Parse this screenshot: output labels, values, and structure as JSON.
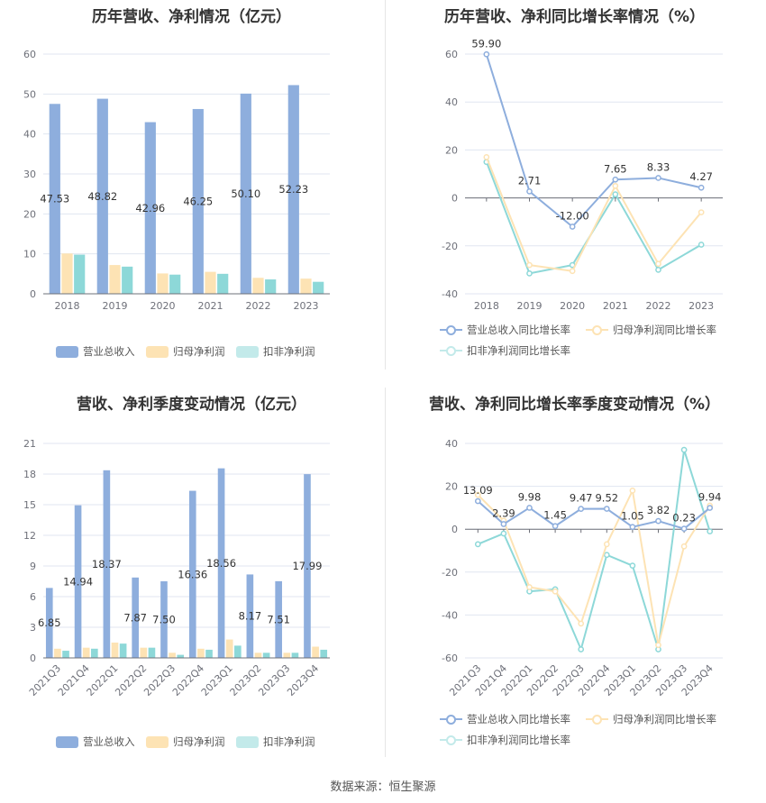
{
  "source_label": "数据来源：恒生聚源",
  "colors": {
    "revenue": "#8eaedd",
    "net_profit": "#fde3b4",
    "deducted_profit": "#8dd8d8",
    "revenue_line": "#8eaedd",
    "net_line": "#fde3b4",
    "deducted_line": "#8dd8d8"
  },
  "chart_data": [
    {
      "type": "bar",
      "title": "历年营收、净利情况（亿元）",
      "categories": [
        "2018",
        "2019",
        "2020",
        "2021",
        "2022",
        "2023"
      ],
      "yticks": [
        "0",
        "10",
        "20",
        "30",
        "40",
        "50",
        "60"
      ],
      "ylim": [
        0,
        60
      ],
      "grid": true,
      "legend_position": "bottom",
      "series": [
        {
          "name": "营业总收入",
          "values": [
            47.53,
            48.82,
            42.96,
            46.25,
            50.1,
            52.23
          ],
          "labels": [
            "47.53",
            "48.82",
            "42.96",
            "46.25",
            "50.10",
            "52.23"
          ]
        },
        {
          "name": "归母净利润",
          "values": [
            10.1,
            7.2,
            5.1,
            5.5,
            4.0,
            3.8
          ]
        },
        {
          "name": "扣非净利润",
          "values": [
            9.8,
            6.8,
            4.8,
            5.0,
            3.6,
            3.0
          ]
        }
      ]
    },
    {
      "type": "line",
      "title": "历年营收、净利同比增长率情况（%）",
      "categories": [
        "2018",
        "2019",
        "2020",
        "2021",
        "2022",
        "2023"
      ],
      "yticks": [
        "-40",
        "-20",
        "0",
        "20",
        "40",
        "60"
      ],
      "ylim": [
        -40,
        60
      ],
      "grid": true,
      "legend_position": "bottom",
      "series": [
        {
          "name": "营业总收入同比增长率",
          "values": [
            59.9,
            2.71,
            -12.0,
            7.65,
            8.33,
            4.27
          ],
          "labels": [
            "59.90",
            "2.71",
            "-12.00",
            "7.65",
            "8.33",
            "4.27"
          ]
        },
        {
          "name": "归母净利润同比增长率",
          "values": [
            17.0,
            -28.0,
            -30.5,
            5.0,
            -27.5,
            -6.0
          ]
        },
        {
          "name": "扣非净利润同比增长率",
          "values": [
            15.0,
            -31.5,
            -28.0,
            1.5,
            -30.0,
            -19.5
          ]
        }
      ]
    },
    {
      "type": "bar",
      "title": "营收、净利季度变动情况（亿元）",
      "categories": [
        "2021Q3",
        "2021Q4",
        "2022Q1",
        "2022Q2",
        "2022Q3",
        "2022Q4",
        "2023Q1",
        "2023Q2",
        "2023Q3",
        "2023Q4"
      ],
      "yticks": [
        "0",
        "3",
        "6",
        "9",
        "12",
        "15",
        "18",
        "21"
      ],
      "ylim": [
        0,
        21
      ],
      "grid": true,
      "legend_position": "bottom",
      "series": [
        {
          "name": "营业总收入",
          "values": [
            6.85,
            14.94,
            18.37,
            7.87,
            7.5,
            16.36,
            18.56,
            8.17,
            7.51,
            17.99
          ],
          "labels": [
            "6.85",
            "14.94",
            "18.37",
            "7.87",
            "7.50",
            "16.36",
            "18.56",
            "8.17",
            "7.51",
            "17.99"
          ]
        },
        {
          "name": "归母净利润",
          "values": [
            0.9,
            1.0,
            1.5,
            1.0,
            0.5,
            0.9,
            1.8,
            0.5,
            0.5,
            1.1
          ]
        },
        {
          "name": "扣非净利润",
          "values": [
            0.7,
            0.9,
            1.4,
            1.0,
            0.3,
            0.8,
            1.2,
            0.5,
            0.5,
            0.8
          ]
        }
      ]
    },
    {
      "type": "line",
      "title": "营收、净利同比增长率季度变动情况（%）",
      "categories": [
        "2021Q3",
        "2021Q4",
        "2022Q1",
        "2022Q2",
        "2022Q3",
        "2022Q4",
        "2023Q1",
        "2023Q2",
        "2023Q3",
        "2023Q4"
      ],
      "yticks": [
        "-60",
        "-40",
        "-20",
        "0",
        "20",
        "40"
      ],
      "ylim": [
        -60,
        40
      ],
      "grid": true,
      "legend_position": "bottom",
      "series": [
        {
          "name": "营业总收入同比增长率",
          "values": [
            13.09,
            2.39,
            9.98,
            1.45,
            9.47,
            9.52,
            1.05,
            3.82,
            0.23,
            9.94
          ],
          "labels": [
            "13.09",
            "2.39",
            "9.98",
            "1.45",
            "9.47",
            "9.52",
            "1.05",
            "3.82",
            "0.23",
            "9.94"
          ]
        },
        {
          "name": "归母净利润同比增长率",
          "values": [
            16.0,
            4.0,
            -27.0,
            -29.0,
            -44.0,
            -7.0,
            18.0,
            -54.0,
            -8.0,
            11.0
          ]
        },
        {
          "name": "扣非净利润同比增长率",
          "values": [
            -7.0,
            -2.0,
            -29.0,
            -28.0,
            -56.0,
            -12.0,
            -17.0,
            -56.0,
            37.0,
            -1.0
          ]
        }
      ]
    }
  ]
}
